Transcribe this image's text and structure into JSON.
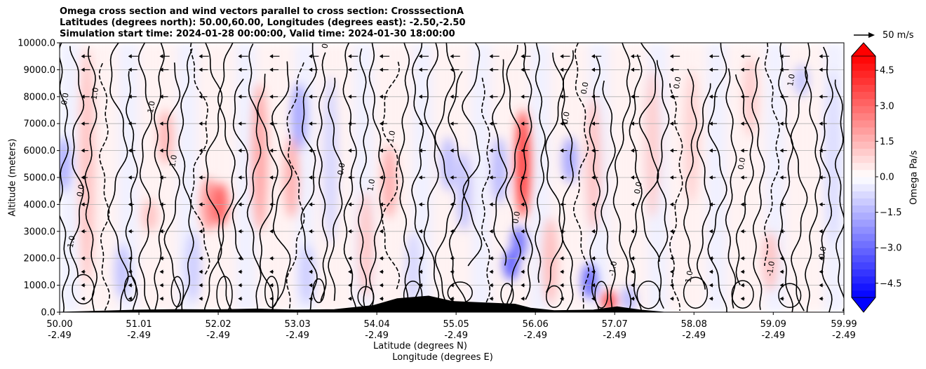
{
  "title_lines": [
    "Omega cross section and wind vectors parallel to cross section: CrosssectionA",
    "Latitudes (degrees north): 50.00,60.00, Longitudes (degrees east): -2.50,-2.50",
    "Simulation start time: 2024-01-28 00:00:00, Valid time: 2024-01-30 18:00:00"
  ],
  "reference_vector": {
    "label": "50 m/s",
    "value": 50,
    "unit": "m/s"
  },
  "chart_data": {
    "type": "contour",
    "ylabel": "Altitude (meters)",
    "xlabel_lines": [
      "Latitude (degrees N)",
      "Longitude (degrees E)"
    ],
    "ylim": [
      0,
      10000
    ],
    "y_ticks": [
      {
        "value": 0,
        "label": "0.0"
      },
      {
        "value": 1000,
        "label": "1000.0"
      },
      {
        "value": 2000,
        "label": "2000.0"
      },
      {
        "value": 3000,
        "label": "3000.0"
      },
      {
        "value": 4000,
        "label": "4000.0"
      },
      {
        "value": 5000,
        "label": "5000.0"
      },
      {
        "value": 6000,
        "label": "6000.0"
      },
      {
        "value": 7000,
        "label": "7000.0"
      },
      {
        "value": 8000,
        "label": "8000.0"
      },
      {
        "value": 9000,
        "label": "9000.0"
      },
      {
        "value": 10000,
        "label": "10000.0"
      }
    ],
    "xlim": [
      50.0,
      59.99
    ],
    "x_ticks": [
      {
        "lat": 50.0,
        "lat_label": "50.00",
        "lon_label": "-2.49"
      },
      {
        "lat": 51.01,
        "lat_label": "51.01",
        "lon_label": "-2.49"
      },
      {
        "lat": 52.02,
        "lat_label": "52.02",
        "lon_label": "-2.49"
      },
      {
        "lat": 53.03,
        "lat_label": "53.03",
        "lon_label": "-2.49"
      },
      {
        "lat": 54.04,
        "lat_label": "54.04",
        "lon_label": "-2.49"
      },
      {
        "lat": 55.05,
        "lat_label": "55.05",
        "lon_label": "-2.49"
      },
      {
        "lat": 56.06,
        "lat_label": "56.06",
        "lon_label": "-2.49"
      },
      {
        "lat": 57.07,
        "lat_label": "57.07",
        "lon_label": "-2.49"
      },
      {
        "lat": 58.08,
        "lat_label": "58.08",
        "lon_label": "-2.49"
      },
      {
        "lat": 59.09,
        "lat_label": "59.09",
        "lon_label": "-2.49"
      },
      {
        "lat": 59.99,
        "lat_label": "59.99",
        "lon_label": "-2.49"
      }
    ],
    "grid": "horizontal",
    "colorbar": {
      "label": "Omega Pa/s",
      "cmap": "bwr",
      "vmin": -5.1,
      "vmax": 5.1,
      "extend": "both",
      "tick_values": [
        4.5,
        3.0,
        1.5,
        0.0,
        -1.5,
        -3.0,
        -4.5
      ],
      "tick_labels": [
        "4.5",
        "3.0",
        "1.5",
        "0.0",
        "−1.5",
        "−3.0",
        "−4.5"
      ],
      "neg_color": "#0000ff",
      "pos_color": "#ff0000"
    },
    "contour_labels": [
      "0.0",
      "1.0",
      "-1.0"
    ],
    "contour_label_samples": [
      {
        "lat": 50.1,
        "alt": 7900,
        "text": "0.0"
      },
      {
        "lat": 50.3,
        "alt": 4500,
        "text": "0.0"
      },
      {
        "lat": 50.18,
        "alt": 2600,
        "text": "1.0"
      },
      {
        "lat": 50.48,
        "alt": 8100,
        "text": "1.0"
      },
      {
        "lat": 51.2,
        "alt": 7600,
        "text": "1.0"
      },
      {
        "lat": 51.48,
        "alt": 5600,
        "text": "1.0"
      },
      {
        "lat": 53.42,
        "alt": 10000,
        "text": "0.0"
      },
      {
        "lat": 53.62,
        "alt": 5300,
        "text": "0.0"
      },
      {
        "lat": 54.0,
        "alt": 4700,
        "text": "1.0"
      },
      {
        "lat": 54.26,
        "alt": 6500,
        "text": "1.0"
      },
      {
        "lat": 55.85,
        "alt": 3500,
        "text": "0.0"
      },
      {
        "lat": 56.48,
        "alt": 7200,
        "text": "0.0"
      },
      {
        "lat": 56.72,
        "alt": 8300,
        "text": "0.0"
      },
      {
        "lat": 57.08,
        "alt": 1600,
        "text": "-1.0"
      },
      {
        "lat": 57.9,
        "alt": 8500,
        "text": "0.0"
      },
      {
        "lat": 58.72,
        "alt": 5500,
        "text": "0.0"
      },
      {
        "lat": 58.05,
        "alt": 1300,
        "text": "1.0"
      },
      {
        "lat": 59.09,
        "alt": 1600,
        "text": "-1.0"
      },
      {
        "lat": 59.75,
        "alt": 2200,
        "text": "0.0"
      },
      {
        "lat": 57.4,
        "alt": 4600,
        "text": "0.0"
      },
      {
        "lat": 59.35,
        "alt": 8600,
        "text": "1.0"
      }
    ],
    "wind_vectors": {
      "direction": "toward lower latitude (leftward)",
      "rows_alt": [
        9500,
        9000,
        8000,
        7000,
        6000,
        5000,
        4000,
        3000,
        2000,
        1500,
        1000,
        500
      ],
      "lats": [
        50.3,
        50.9,
        51.3,
        51.8,
        52.3,
        52.7,
        53.2,
        53.7,
        54.1,
        54.6,
        55.0,
        55.5,
        55.9,
        56.4,
        56.8,
        57.3,
        57.8,
        58.3,
        58.7,
        59.2,
        59.7
      ],
      "typical_speed_ms": [
        25,
        22,
        20,
        18,
        16,
        14,
        12,
        10,
        8,
        6,
        5,
        4
      ]
    },
    "terrain": [
      {
        "lat": 50.0,
        "alt": 0
      },
      {
        "lat": 50.5,
        "alt": 40
      },
      {
        "lat": 51.0,
        "alt": 80
      },
      {
        "lat": 51.5,
        "alt": 100
      },
      {
        "lat": 52.0,
        "alt": 90
      },
      {
        "lat": 52.5,
        "alt": 120
      },
      {
        "lat": 53.0,
        "alt": 80
      },
      {
        "lat": 53.5,
        "alt": 100
      },
      {
        "lat": 54.0,
        "alt": 250
      },
      {
        "lat": 54.3,
        "alt": 500
      },
      {
        "lat": 54.7,
        "alt": 600
      },
      {
        "lat": 55.0,
        "alt": 400
      },
      {
        "lat": 55.4,
        "alt": 350
      },
      {
        "lat": 55.8,
        "alt": 300
      },
      {
        "lat": 56.0,
        "alt": 150
      },
      {
        "lat": 56.3,
        "alt": 60
      },
      {
        "lat": 56.8,
        "alt": 80
      },
      {
        "lat": 57.1,
        "alt": 200
      },
      {
        "lat": 57.4,
        "alt": 80
      },
      {
        "lat": 57.7,
        "alt": 0
      },
      {
        "lat": 59.99,
        "alt": 0
      }
    ],
    "omega_features": [
      {
        "lat": 50.35,
        "alt_from": 1000,
        "alt_to": 9800,
        "value": 1.2
      },
      {
        "lat": 50.05,
        "alt_from": 4500,
        "alt_to": 6500,
        "value": -1.6
      },
      {
        "lat": 50.8,
        "alt_from": 500,
        "alt_to": 2500,
        "value": -1.2
      },
      {
        "lat": 51.35,
        "alt_from": 5500,
        "alt_to": 7500,
        "value": 1.5
      },
      {
        "lat": 51.15,
        "alt_from": 3000,
        "alt_to": 4200,
        "value": 1.2
      },
      {
        "lat": 51.7,
        "alt_from": 400,
        "alt_to": 3000,
        "value": -1.0
      },
      {
        "lat": 51.9,
        "alt_from": 3000,
        "alt_to": 5000,
        "value": 2.2
      },
      {
        "lat": 52.05,
        "alt_from": 3200,
        "alt_to": 4800,
        "value": 3.2
      },
      {
        "lat": 52.55,
        "alt_from": 3000,
        "alt_to": 8500,
        "value": 1.8
      },
      {
        "lat": 53.05,
        "alt_from": 6000,
        "alt_to": 8500,
        "value": -1.8
      },
      {
        "lat": 52.95,
        "alt_from": 3500,
        "alt_to": 6500,
        "value": 1.6
      },
      {
        "lat": 53.15,
        "alt_from": 300,
        "alt_to": 2500,
        "value": -1.0
      },
      {
        "lat": 53.45,
        "alt_from": 2500,
        "alt_to": 8800,
        "value": -0.8
      },
      {
        "lat": 54.2,
        "alt_from": 3500,
        "alt_to": 6200,
        "value": 1.6
      },
      {
        "lat": 53.9,
        "alt_from": 500,
        "alt_to": 4500,
        "value": 1.1
      },
      {
        "lat": 54.5,
        "alt_from": 200,
        "alt_to": 3000,
        "value": -0.8
      },
      {
        "lat": 54.95,
        "alt_from": 4500,
        "alt_to": 6500,
        "value": -1.3
      },
      {
        "lat": 55.15,
        "alt_from": 3000,
        "alt_to": 6000,
        "value": -1.2
      },
      {
        "lat": 55.6,
        "alt_from": 4000,
        "alt_to": 6500,
        "value": -1.4
      },
      {
        "lat": 55.85,
        "alt_from": 2000,
        "alt_to": 3200,
        "value": -2.8
      },
      {
        "lat": 55.75,
        "alt_from": 1200,
        "alt_to": 2300,
        "value": -3.2
      },
      {
        "lat": 55.9,
        "alt_from": 3500,
        "alt_to": 7500,
        "value": 3.8
      },
      {
        "lat": 56.25,
        "alt_from": 300,
        "alt_to": 3500,
        "value": 1.3
      },
      {
        "lat": 56.5,
        "alt_from": 4800,
        "alt_to": 6500,
        "value": -1.8
      },
      {
        "lat": 56.8,
        "alt_from": 3000,
        "alt_to": 8000,
        "value": 1.2
      },
      {
        "lat": 56.75,
        "alt_from": 500,
        "alt_to": 1800,
        "value": -3.0
      },
      {
        "lat": 57.0,
        "alt_from": 0,
        "alt_to": 800,
        "value": 3.5
      },
      {
        "lat": 57.25,
        "alt_from": 0,
        "alt_to": 1000,
        "value": -1.4
      },
      {
        "lat": 57.55,
        "alt_from": 3500,
        "alt_to": 9000,
        "value": 1.0
      },
      {
        "lat": 58.05,
        "alt_from": 4000,
        "alt_to": 9000,
        "value": 0.9
      },
      {
        "lat": 58.8,
        "alt_from": 6500,
        "alt_to": 9500,
        "value": 1.0
      },
      {
        "lat": 59.05,
        "alt_from": 800,
        "alt_to": 3000,
        "value": 1.2
      },
      {
        "lat": 59.45,
        "alt_from": 8000,
        "alt_to": 9200,
        "value": -1.1
      },
      {
        "lat": 59.85,
        "alt_from": 2500,
        "alt_to": 9000,
        "value": -0.7
      }
    ]
  }
}
